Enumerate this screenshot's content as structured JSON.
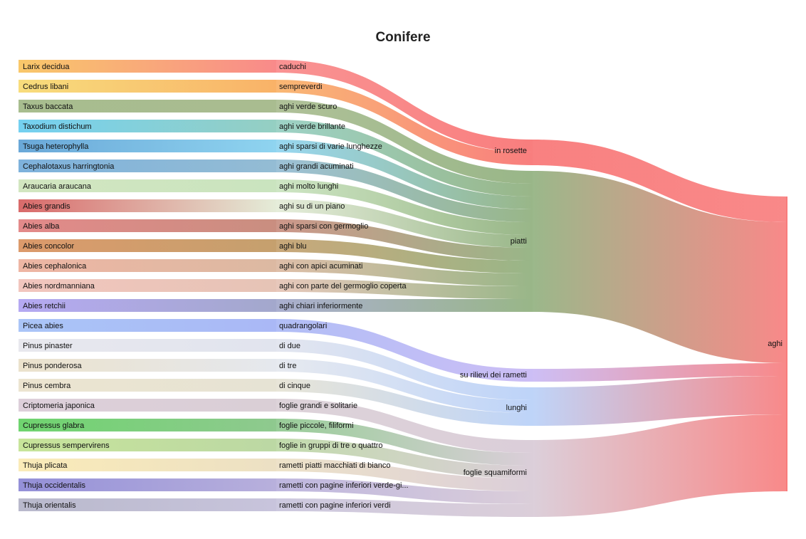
{
  "chart_data": {
    "type": "sankey",
    "title": "Conifere",
    "species": [
      {
        "name": "Larix decidua",
        "color": "#f9c86a"
      },
      {
        "name": "Cedrus libani",
        "color": "#f8dd7c"
      },
      {
        "name": "Taxus baccata",
        "color": "#a8bd8f"
      },
      {
        "name": "Taxodium distichum",
        "color": "#74d0f1"
      },
      {
        "name": "Tsuga heterophylla",
        "color": "#6aa8d8"
      },
      {
        "name": "Cephalotaxus harringtonia",
        "color": "#7eb2dc"
      },
      {
        "name": "Araucaria araucana",
        "color": "#d2e6c0"
      },
      {
        "name": "Abies grandis",
        "color": "#d96a6a"
      },
      {
        "name": "Abies alba",
        "color": "#e38a8a"
      },
      {
        "name": "Abies concolor",
        "color": "#dc9a6b"
      },
      {
        "name": "Abies cephalonica",
        "color": "#eeb6a4"
      },
      {
        "name": "Abies nordmanniana",
        "color": "#f2c6be"
      },
      {
        "name": "Abies retchii",
        "color": "#b5a9f2"
      },
      {
        "name": "Picea abies",
        "color": "#aac5f7"
      },
      {
        "name": "Pinus pinaster",
        "color": "#e8e8ee"
      },
      {
        "name": "Pinus ponderosa",
        "color": "#ebe2cc"
      },
      {
        "name": "Pinus cembra",
        "color": "#ece4d0"
      },
      {
        "name": "Criptomeria japonica",
        "color": "#ddcfda"
      },
      {
        "name": "Cupressus glabra",
        "color": "#6fd46f"
      },
      {
        "name": "Cupressus sempervirens",
        "color": "#c7e49a"
      },
      {
        "name": "Thuja plicata",
        "color": "#faebb8"
      },
      {
        "name": "Thuja occidentalis",
        "color": "#9490d8"
      },
      {
        "name": "Thuja orientalis",
        "color": "#b9b9cc"
      }
    ],
    "traits": [
      {
        "name": "caduchi",
        "color": "#f98a8a"
      },
      {
        "name": "sempreverdi",
        "color": "#f9b268"
      },
      {
        "name": "aghi verde scuro",
        "color": "#a9bc90"
      },
      {
        "name": "aghi verde brillante",
        "color": "#95cfc2"
      },
      {
        "name": "aghi sparsi di varie lunghezze",
        "color": "#8fd4f0"
      },
      {
        "name": "aghi grandi acuminati",
        "color": "#94bcd4"
      },
      {
        "name": "aghi molto lunghi",
        "color": "#cae4bf"
      },
      {
        "name": "aghi su di un piano",
        "color": "#e4ecd8"
      },
      {
        "name": "aghi sparsi con germoglio",
        "color": "#c98e80"
      },
      {
        "name": "aghi blu",
        "color": "#c5a06e"
      },
      {
        "name": "aghi con apici acuminati",
        "color": "#dcb9a2"
      },
      {
        "name": "aghi con parte del germoglio coperta",
        "color": "#e6c4b6"
      },
      {
        "name": "aghi chiari inferiormente",
        "color": "#a3a8cc"
      },
      {
        "name": "quadrangolari",
        "color": "#aab8f6"
      },
      {
        "name": "di due",
        "color": "#e1e4ee"
      },
      {
        "name": "di tre",
        "color": "#e5e8ee"
      },
      {
        "name": "di cinque",
        "color": "#e6e3d4"
      },
      {
        "name": "foglie grandi e solitarie",
        "color": "#dacfd6"
      },
      {
        "name": "foglie piccole, filiformi",
        "color": "#8fc98f"
      },
      {
        "name": "foglie in gruppi di tre o quattro",
        "color": "#bcd8a4"
      },
      {
        "name": "rametti piatti macchiati di bianco",
        "color": "#ece0c4"
      },
      {
        "name": "rametti con pagine inferiori verde-gi...",
        "color": "#b8b0dc"
      },
      {
        "name": "rametti con pagine inferiori verdi",
        "color": "#c8c4dc"
      }
    ],
    "groups": [
      {
        "name": "in rosette",
        "color": "#f87373",
        "traits": [
          0,
          1
        ]
      },
      {
        "name": "piatti",
        "color": "#90b07e",
        "traits": [
          2,
          3,
          4,
          5,
          6,
          7,
          8,
          9,
          10,
          11,
          12
        ]
      },
      {
        "name": "su rilievi dei rametti",
        "color": "#c8b8f4",
        "traits": [
          13
        ]
      },
      {
        "name": "lunghi",
        "color": "#b8d0f8",
        "traits": [
          14,
          15,
          16
        ]
      },
      {
        "name": "foglie squamiformi",
        "color": "#d8cad6",
        "traits": [
          17,
          18,
          19,
          20,
          21,
          22
        ]
      }
    ],
    "root": {
      "name": "aghi",
      "color": "#f87c7c"
    },
    "flow_value_per_species": 1
  }
}
